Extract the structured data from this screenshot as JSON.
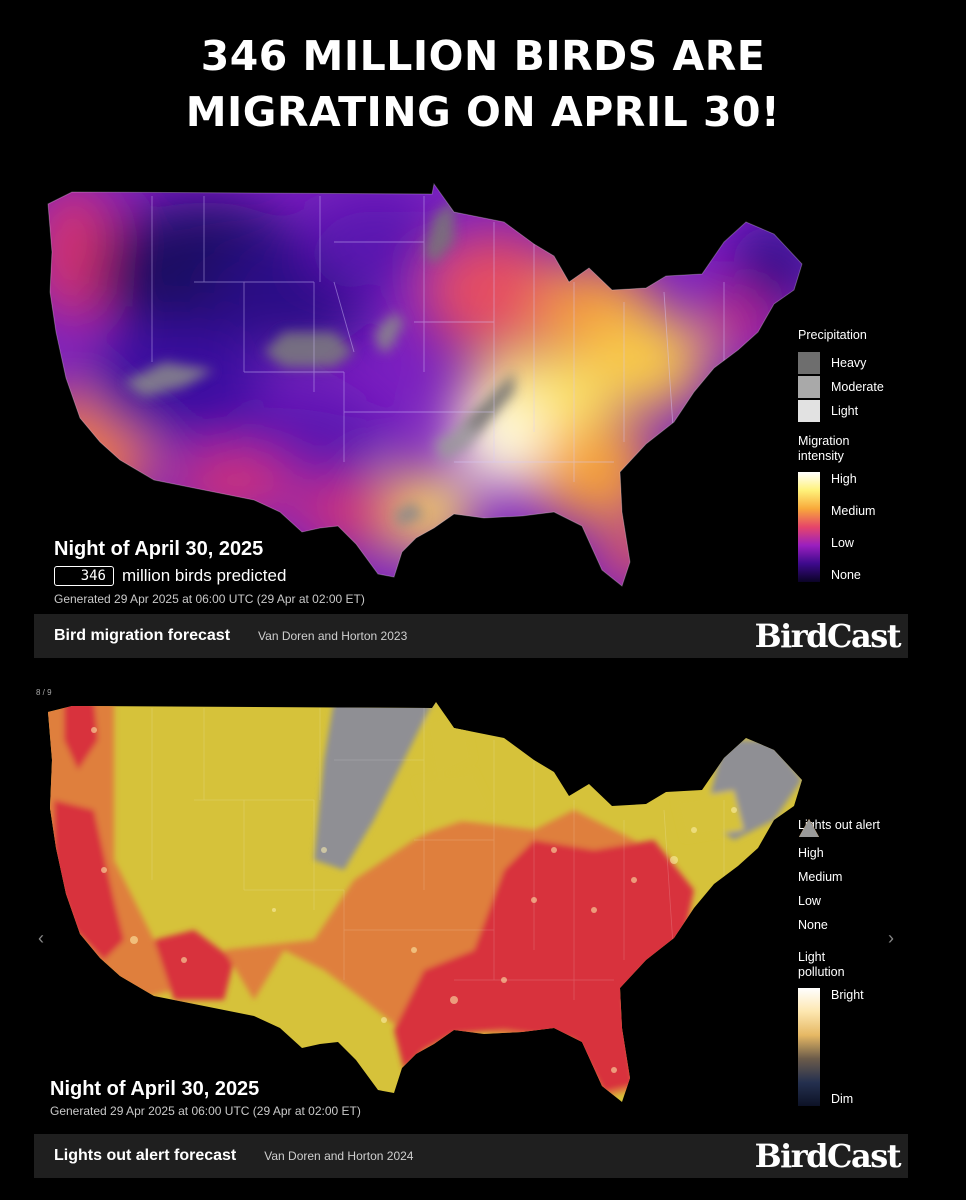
{
  "headline": {
    "line1": "346 MILLION BIRDS ARE",
    "line2": "MIGRATING ON APRIL 30!"
  },
  "migration": {
    "night_label": "Night of April 30, 2025",
    "count": "346",
    "count_suffix": "million birds predicted",
    "generated": "Generated 29 Apr 2025 at 06:00 UTC (29 Apr at 02:00 ET)",
    "footer_title": "Bird migration forecast",
    "footer_citation": "Van Doren and Horton 2023",
    "logo": "BirdCast",
    "legend": {
      "precip_title": "Precipitation",
      "precip_items": [
        {
          "label": "Heavy",
          "color": "#6e6e6e"
        },
        {
          "label": "Moderate",
          "color": "#a9a9a9"
        },
        {
          "label": "Light",
          "color": "#e2e2e2"
        }
      ],
      "intensity_title_1": "Migration",
      "intensity_title_2": "intensity",
      "intensity_labels": [
        "High",
        "Medium",
        "Low",
        "None"
      ],
      "intensity_colors": [
        "#ffffff",
        "#fff27a",
        "#f8a93b",
        "#e6456a",
        "#9b1fbf",
        "#3d0a8c",
        "#0a0326"
      ]
    }
  },
  "lights": {
    "pager": "8 / 9",
    "night_label": "Night of April 30, 2025",
    "generated": "Generated 29 Apr 2025 at 06:00 UTC (29 Apr at 02:00 ET)",
    "footer_title": "Lights out alert forecast",
    "footer_citation": "Van Doren and Horton 2024",
    "logo": "BirdCast",
    "legend": {
      "alert_title": "Lights out alert",
      "alert_items": [
        {
          "label": "High",
          "color": "#e8323f"
        },
        {
          "label": "Medium",
          "color": "#ea7a3c"
        },
        {
          "label": "Low",
          "color": "#f2d23a"
        },
        {
          "label": "None",
          "color": "#9a9a9a"
        }
      ],
      "pollution_title_1": "Light",
      "pollution_title_2": "pollution",
      "pollution_labels": [
        "Bright",
        "Dim"
      ],
      "pollution_colors": [
        "#ffffff",
        "#fde7b0",
        "#e6b864",
        "#6b5b4a",
        "#24304f",
        "#0d1226"
      ]
    },
    "prev_arrow": "‹",
    "next_arrow": "›"
  }
}
